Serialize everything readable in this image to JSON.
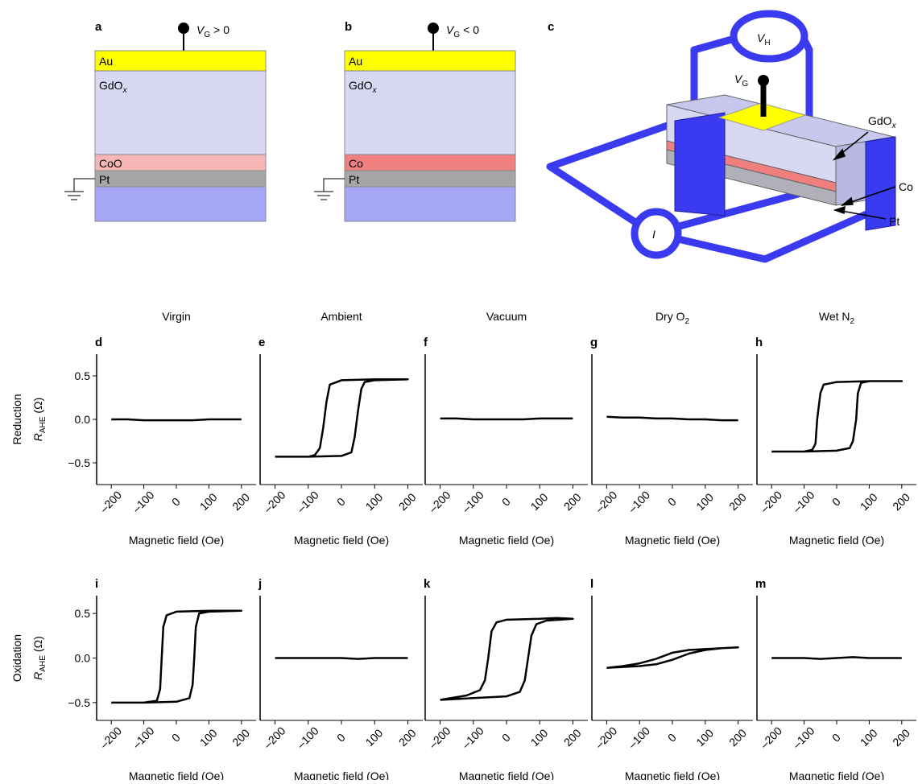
{
  "panel_a": {
    "label": "a",
    "gate_symbol": "V",
    "gate_sub": "G",
    "gate_condition": "> 0",
    "layer_1": "Au",
    "layer_2": "GdO",
    "layer_2_sub": "x",
    "layer_3": "CoO",
    "layer_4": "Pt"
  },
  "panel_b": {
    "label": "b",
    "gate_symbol": "V",
    "gate_sub": "G",
    "gate_condition": "< 0",
    "layer_1": "Au",
    "layer_2": "GdO",
    "layer_2_sub": "x",
    "layer_3": "Co",
    "layer_4": "Pt"
  },
  "panel_c": {
    "label": "c",
    "voltmeter": "V",
    "voltmeter_sub": "H",
    "gate": "V",
    "gate_sub": "G",
    "oxide": "GdO",
    "oxide_sub": "x",
    "ferromagnet": "Co",
    "heavy_metal": "Pt",
    "current": "I"
  },
  "chart_data": [
    {
      "type": "line",
      "panel": "d",
      "title": "Virgin",
      "row_label": "Reduction",
      "ylabel": "R",
      "ylabel_sub": "AHE",
      "ylabel_unit": "(Ω)",
      "xlabel": "Magnetic field (Oe)",
      "color": "#000000",
      "xlim": [
        -245,
        245
      ],
      "ylim": [
        -0.75,
        0.75
      ],
      "xticks": [
        {
          "value": -200,
          "label": "–200"
        },
        {
          "value": -100,
          "label": "–100"
        },
        0,
        100,
        200
      ],
      "yticks": [
        {
          "value": -0.5,
          "label": "−0.5"
        },
        {
          "value": 0,
          "label": "0.0"
        },
        {
          "value": 0.5,
          "label": "0.5"
        }
      ],
      "x": [
        -200,
        -150,
        -100,
        -50,
        0,
        50,
        100,
        150,
        200
      ],
      "values": [
        0,
        0,
        -0.01,
        -0.01,
        -0.01,
        -0.01,
        0,
        0,
        0
      ]
    },
    {
      "type": "line",
      "panel": "e",
      "title": "Ambient",
      "xlabel": "Magnetic field (Oe)",
      "color": "#000000",
      "xlim": [
        -245,
        245
      ],
      "ylim": [
        -0.75,
        0.75
      ],
      "xticks": [
        {
          "value": -200,
          "label": "–200"
        },
        {
          "value": -100,
          "label": "–100"
        },
        0,
        100,
        200
      ],
      "x": [
        -200,
        -100,
        0,
        30,
        40,
        50,
        60,
        70,
        100,
        200,
        150,
        100,
        0,
        -35,
        -45,
        -55,
        -65,
        -80,
        -100,
        -200
      ],
      "values": [
        -0.43,
        -0.43,
        -0.42,
        -0.38,
        -0.2,
        0.1,
        0.35,
        0.43,
        0.45,
        0.46,
        0.46,
        0.46,
        0.45,
        0.4,
        0.2,
        -0.1,
        -0.33,
        -0.41,
        -0.43,
        -0.43
      ]
    },
    {
      "type": "line",
      "panel": "f",
      "title": "Vacuum",
      "xlabel": "Magnetic field (Oe)",
      "color": "#000000",
      "xlim": [
        -245,
        245
      ],
      "ylim": [
        -0.75,
        0.75
      ],
      "xticks": [
        {
          "value": -200,
          "label": "–200"
        },
        {
          "value": -100,
          "label": "–100"
        },
        0,
        100,
        200
      ],
      "x": [
        -200,
        -150,
        -100,
        -50,
        0,
        50,
        100,
        150,
        200
      ],
      "values": [
        0.01,
        0.01,
        0,
        0,
        0,
        0,
        0.01,
        0.01,
        0.01
      ]
    },
    {
      "type": "line",
      "panel": "g",
      "title": "Dry O",
      "title_sub": "2",
      "xlabel": "Magnetic field (Oe)",
      "color": "#000000",
      "xlim": [
        -245,
        245
      ],
      "ylim": [
        -0.75,
        0.75
      ],
      "xticks": [
        {
          "value": -200,
          "label": "–200"
        },
        {
          "value": -100,
          "label": "–100"
        },
        0,
        100,
        200
      ],
      "x": [
        -200,
        -150,
        -100,
        -50,
        0,
        50,
        100,
        150,
        200
      ],
      "values": [
        0.03,
        0.02,
        0.02,
        0.01,
        0.01,
        0,
        0,
        -0.01,
        -0.01
      ]
    },
    {
      "type": "line",
      "panel": "h",
      "title": "Wet N",
      "title_sub": "2",
      "xlabel": "Magnetic field (Oe)",
      "color": "#000000",
      "xlim": [
        -245,
        245
      ],
      "ylim": [
        -0.75,
        0.75
      ],
      "xticks": [
        {
          "value": -200,
          "label": "–200"
        },
        {
          "value": -100,
          "label": "–100"
        },
        0,
        100,
        200
      ],
      "x": [
        -200,
        -100,
        0,
        40,
        50,
        60,
        65,
        75,
        100,
        200,
        150,
        100,
        0,
        -40,
        -50,
        -60,
        -65,
        -75,
        -100,
        -200
      ],
      "values": [
        -0.37,
        -0.37,
        -0.36,
        -0.33,
        -0.25,
        0,
        0.3,
        0.42,
        0.44,
        0.44,
        0.44,
        0.44,
        0.43,
        0.4,
        0.3,
        0,
        -0.28,
        -0.35,
        -0.37,
        -0.37
      ]
    },
    {
      "type": "line",
      "panel": "i",
      "row_label": "Oxidation",
      "ylabel": "R",
      "ylabel_sub": "AHE",
      "ylabel_unit": "(Ω)",
      "xlabel": "Magnetic field (Oe)",
      "color": "#000000",
      "xlim": [
        -245,
        245
      ],
      "ylim": [
        -0.7,
        0.7
      ],
      "xticks": [
        {
          "value": -200,
          "label": "–200"
        },
        {
          "value": -100,
          "label": "–100"
        },
        0,
        100,
        200
      ],
      "yticks": [
        {
          "value": -0.5,
          "label": "−0.5"
        },
        {
          "value": 0,
          "label": "0.0"
        },
        {
          "value": 0.5,
          "label": "0.5"
        }
      ],
      "x": [
        -200,
        -100,
        0,
        40,
        50,
        55,
        60,
        70,
        100,
        200,
        150,
        100,
        0,
        -30,
        -40,
        -45,
        -50,
        -60,
        -100,
        -200
      ],
      "values": [
        -0.5,
        -0.5,
        -0.49,
        -0.45,
        -0.3,
        0,
        0.35,
        0.5,
        0.52,
        0.53,
        0.53,
        0.53,
        0.52,
        0.48,
        0.35,
        0,
        -0.35,
        -0.48,
        -0.5,
        -0.5
      ]
    },
    {
      "type": "line",
      "panel": "j",
      "xlabel": "Magnetic field (Oe)",
      "color": "#000000",
      "xlim": [
        -245,
        245
      ],
      "ylim": [
        -0.7,
        0.7
      ],
      "xticks": [
        {
          "value": -200,
          "label": "–200"
        },
        {
          "value": -100,
          "label": "–100"
        },
        0,
        100,
        200
      ],
      "x": [
        -200,
        -150,
        -100,
        -50,
        0,
        50,
        100,
        150,
        200
      ],
      "values": [
        0,
        0,
        0,
        0,
        0,
        -0.01,
        0,
        0,
        0
      ]
    },
    {
      "type": "line",
      "panel": "k",
      "xlabel": "Magnetic field (Oe)",
      "color": "#000000",
      "xlim": [
        -245,
        245
      ],
      "ylim": [
        -0.7,
        0.7
      ],
      "xticks": [
        {
          "value": -200,
          "label": "–200"
        },
        {
          "value": -100,
          "label": "–100"
        },
        0,
        100,
        200
      ],
      "x": [
        -200,
        -100,
        0,
        40,
        55,
        65,
        75,
        90,
        120,
        200,
        150,
        100,
        0,
        -30,
        -45,
        -55,
        -65,
        -80,
        -120,
        -200
      ],
      "values": [
        -0.47,
        -0.45,
        -0.43,
        -0.38,
        -0.25,
        0,
        0.25,
        0.38,
        0.42,
        0.44,
        0.45,
        0.44,
        0.43,
        0.4,
        0.3,
        0,
        -0.25,
        -0.36,
        -0.42,
        -0.47
      ]
    },
    {
      "type": "line",
      "panel": "l",
      "xlabel": "Magnetic field (Oe)",
      "color": "#000000",
      "xlim": [
        -245,
        245
      ],
      "ylim": [
        -0.7,
        0.7
      ],
      "xticks": [
        {
          "value": -200,
          "label": "–200"
        },
        {
          "value": -100,
          "label": "–100"
        },
        0,
        100,
        200
      ],
      "x": [
        -200,
        -150,
        -100,
        -50,
        0,
        50,
        100,
        150,
        200,
        150,
        100,
        50,
        0,
        -50,
        -100,
        -150,
        -200
      ],
      "values": [
        -0.11,
        -0.1,
        -0.09,
        -0.07,
        -0.02,
        0.05,
        0.09,
        0.11,
        0.12,
        0.11,
        0.1,
        0.09,
        0.06,
        -0.01,
        -0.06,
        -0.09,
        -0.11
      ]
    },
    {
      "type": "line",
      "panel": "m",
      "xlabel": "Magnetic field (Oe)",
      "color": "#000000",
      "xlim": [
        -245,
        245
      ],
      "ylim": [
        -0.7,
        0.7
      ],
      "xticks": [
        {
          "value": -200,
          "label": "–200"
        },
        {
          "value": -100,
          "label": "–100"
        },
        0,
        100,
        200
      ],
      "x": [
        -200,
        -150,
        -100,
        -50,
        0,
        50,
        100,
        150,
        200
      ],
      "values": [
        0,
        0,
        0,
        -0.01,
        0,
        0.01,
        0,
        0,
        0
      ]
    }
  ]
}
